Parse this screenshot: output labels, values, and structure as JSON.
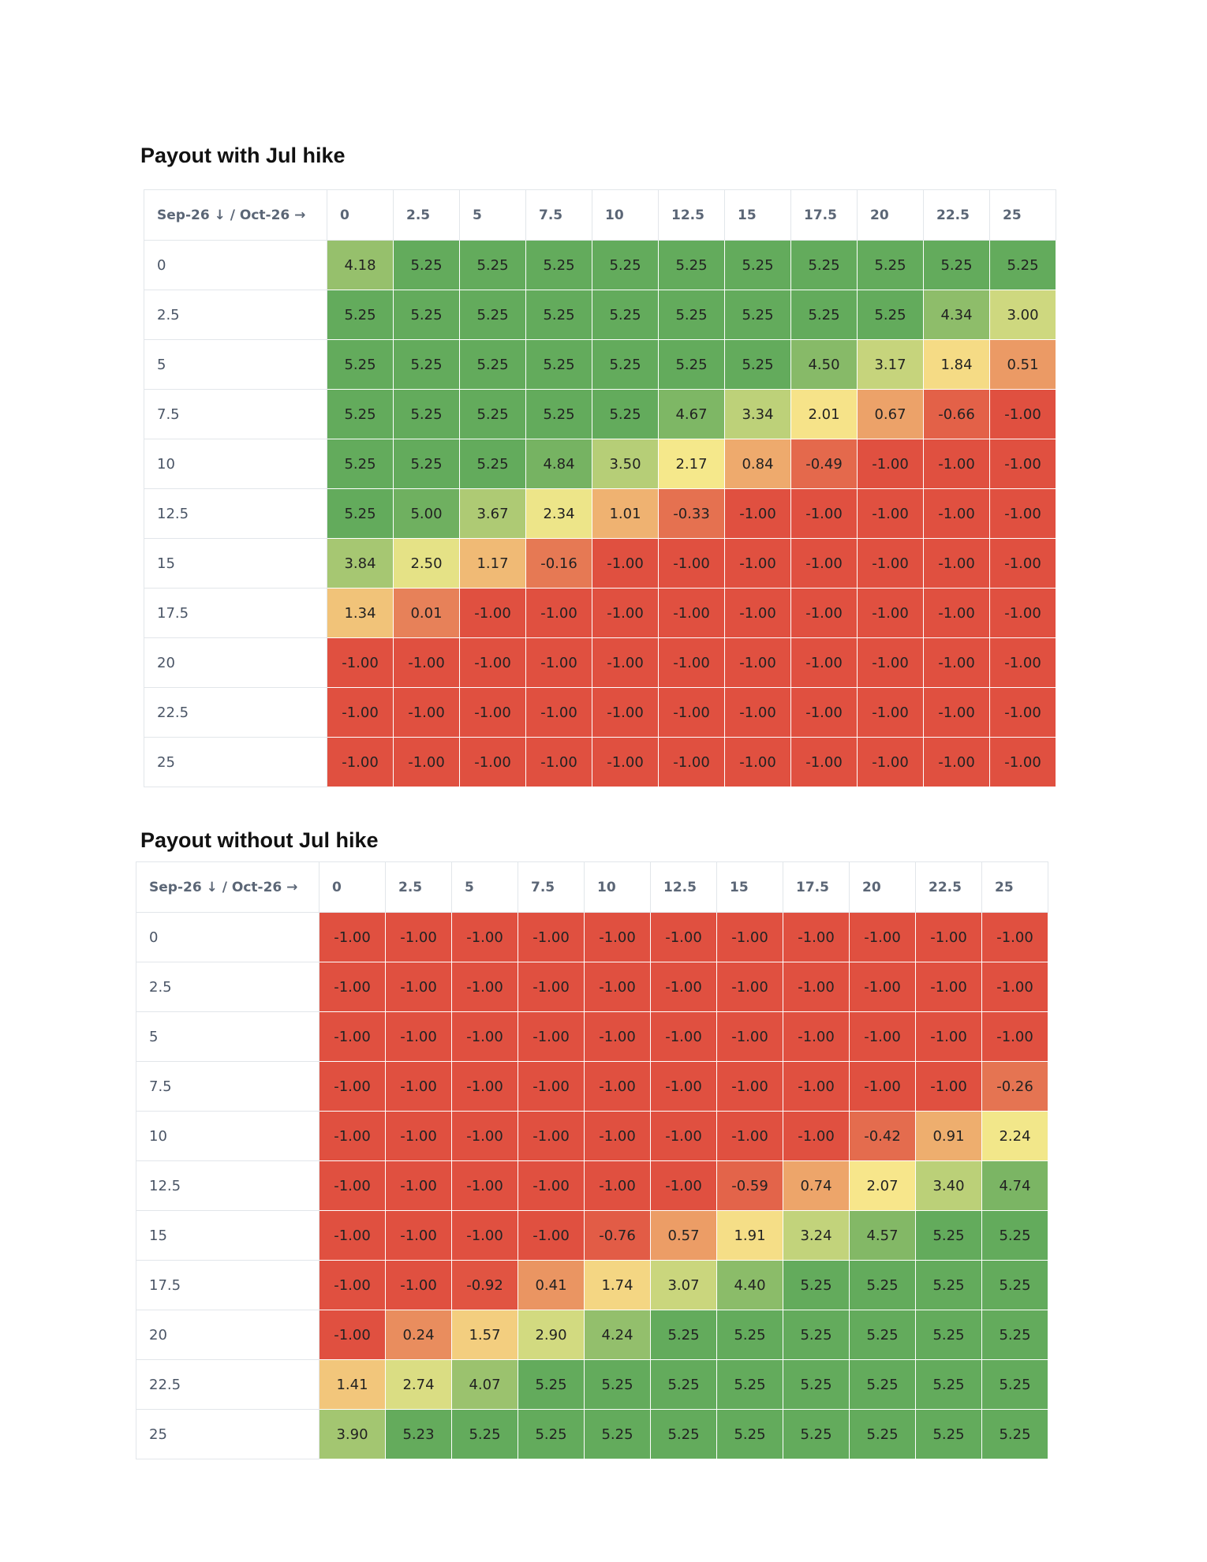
{
  "sections": [
    {
      "title": "Payout with Jul hike",
      "corner_label": "Sep-26 ↓ / Oct-26 →",
      "columns": [
        "0",
        "2.5",
        "5",
        "7.5",
        "10",
        "12.5",
        "15",
        "17.5",
        "20",
        "22.5",
        "25"
      ],
      "rows": [
        {
          "label": "0",
          "values": [
            "4.18",
            "5.25",
            "5.25",
            "5.25",
            "5.25",
            "5.25",
            "5.25",
            "5.25",
            "5.25",
            "5.25",
            "5.25"
          ]
        },
        {
          "label": "2.5",
          "values": [
            "5.25",
            "5.25",
            "5.25",
            "5.25",
            "5.25",
            "5.25",
            "5.25",
            "5.25",
            "5.25",
            "4.34",
            "3.00"
          ]
        },
        {
          "label": "5",
          "values": [
            "5.25",
            "5.25",
            "5.25",
            "5.25",
            "5.25",
            "5.25",
            "5.25",
            "4.50",
            "3.17",
            "1.84",
            "0.51"
          ]
        },
        {
          "label": "7.5",
          "values": [
            "5.25",
            "5.25",
            "5.25",
            "5.25",
            "5.25",
            "4.67",
            "3.34",
            "2.01",
            "0.67",
            "-0.66",
            "-1.00"
          ]
        },
        {
          "label": "10",
          "values": [
            "5.25",
            "5.25",
            "5.25",
            "4.84",
            "3.50",
            "2.17",
            "0.84",
            "-0.49",
            "-1.00",
            "-1.00",
            "-1.00"
          ]
        },
        {
          "label": "12.5",
          "values": [
            "5.25",
            "5.00",
            "3.67",
            "2.34",
            "1.01",
            "-0.33",
            "-1.00",
            "-1.00",
            "-1.00",
            "-1.00",
            "-1.00"
          ]
        },
        {
          "label": "15",
          "values": [
            "3.84",
            "2.50",
            "1.17",
            "-0.16",
            "-1.00",
            "-1.00",
            "-1.00",
            "-1.00",
            "-1.00",
            "-1.00",
            "-1.00"
          ]
        },
        {
          "label": "17.5",
          "values": [
            "1.34",
            "0.01",
            "-1.00",
            "-1.00",
            "-1.00",
            "-1.00",
            "-1.00",
            "-1.00",
            "-1.00",
            "-1.00",
            "-1.00"
          ]
        },
        {
          "label": "20",
          "values": [
            "-1.00",
            "-1.00",
            "-1.00",
            "-1.00",
            "-1.00",
            "-1.00",
            "-1.00",
            "-1.00",
            "-1.00",
            "-1.00",
            "-1.00"
          ]
        },
        {
          "label": "22.5",
          "values": [
            "-1.00",
            "-1.00",
            "-1.00",
            "-1.00",
            "-1.00",
            "-1.00",
            "-1.00",
            "-1.00",
            "-1.00",
            "-1.00",
            "-1.00"
          ]
        },
        {
          "label": "25",
          "values": [
            "-1.00",
            "-1.00",
            "-1.00",
            "-1.00",
            "-1.00",
            "-1.00",
            "-1.00",
            "-1.00",
            "-1.00",
            "-1.00",
            "-1.00"
          ]
        }
      ]
    },
    {
      "title": "Payout without Jul hike",
      "corner_label": "Sep-26 ↓ / Oct-26 →",
      "columns": [
        "0",
        "2.5",
        "5",
        "7.5",
        "10",
        "12.5",
        "15",
        "17.5",
        "20",
        "22.5",
        "25"
      ],
      "rows": [
        {
          "label": "0",
          "values": [
            "-1.00",
            "-1.00",
            "-1.00",
            "-1.00",
            "-1.00",
            "-1.00",
            "-1.00",
            "-1.00",
            "-1.00",
            "-1.00",
            "-1.00"
          ]
        },
        {
          "label": "2.5",
          "values": [
            "-1.00",
            "-1.00",
            "-1.00",
            "-1.00",
            "-1.00",
            "-1.00",
            "-1.00",
            "-1.00",
            "-1.00",
            "-1.00",
            "-1.00"
          ]
        },
        {
          "label": "5",
          "values": [
            "-1.00",
            "-1.00",
            "-1.00",
            "-1.00",
            "-1.00",
            "-1.00",
            "-1.00",
            "-1.00",
            "-1.00",
            "-1.00",
            "-1.00"
          ]
        },
        {
          "label": "7.5",
          "values": [
            "-1.00",
            "-1.00",
            "-1.00",
            "-1.00",
            "-1.00",
            "-1.00",
            "-1.00",
            "-1.00",
            "-1.00",
            "-1.00",
            "-0.26"
          ]
        },
        {
          "label": "10",
          "values": [
            "-1.00",
            "-1.00",
            "-1.00",
            "-1.00",
            "-1.00",
            "-1.00",
            "-1.00",
            "-1.00",
            "-0.42",
            "0.91",
            "2.24"
          ]
        },
        {
          "label": "12.5",
          "values": [
            "-1.00",
            "-1.00",
            "-1.00",
            "-1.00",
            "-1.00",
            "-1.00",
            "-0.59",
            "0.74",
            "2.07",
            "3.40",
            "4.74"
          ]
        },
        {
          "label": "15",
          "values": [
            "-1.00",
            "-1.00",
            "-1.00",
            "-1.00",
            "-0.76",
            "0.57",
            "1.91",
            "3.24",
            "4.57",
            "5.25",
            "5.25"
          ]
        },
        {
          "label": "17.5",
          "values": [
            "-1.00",
            "-1.00",
            "-0.92",
            "0.41",
            "1.74",
            "3.07",
            "4.40",
            "5.25",
            "5.25",
            "5.25",
            "5.25"
          ]
        },
        {
          "label": "20",
          "values": [
            "-1.00",
            "0.24",
            "1.57",
            "2.90",
            "4.24",
            "5.25",
            "5.25",
            "5.25",
            "5.25",
            "5.25",
            "5.25"
          ]
        },
        {
          "label": "22.5",
          "values": [
            "1.41",
            "2.74",
            "4.07",
            "5.25",
            "5.25",
            "5.25",
            "5.25",
            "5.25",
            "5.25",
            "5.25",
            "5.25"
          ]
        },
        {
          "label": "25",
          "values": [
            "3.90",
            "5.23",
            "5.25",
            "5.25",
            "5.25",
            "5.25",
            "5.25",
            "5.25",
            "5.25",
            "5.25",
            "5.25"
          ]
        }
      ]
    }
  ],
  "colors": {
    "negative_max": "#e05040",
    "mid": "#f7e98c",
    "positive_max": "#63ab5c"
  }
}
